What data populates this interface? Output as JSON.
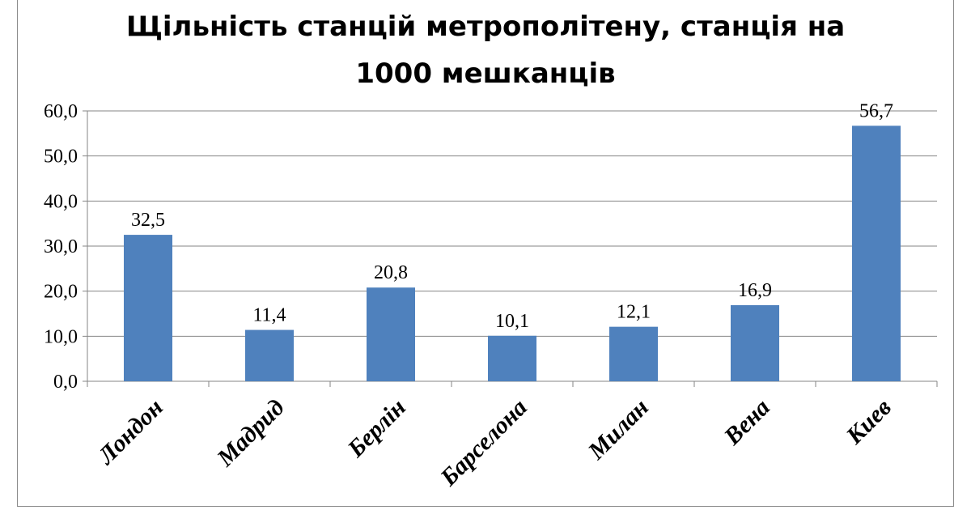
{
  "chart_data": {
    "type": "bar",
    "title_line1": "Щільність станцій метрополітену, станція на",
    "title_line2": "1000 мешканців",
    "categories": [
      "Лондон",
      "Мадрид",
      "Берлін",
      "Барселона",
      "Милан",
      "Вена",
      "Киев"
    ],
    "values": [
      32.5,
      11.4,
      20.8,
      10.1,
      12.1,
      16.9,
      56.7
    ],
    "value_labels": [
      "32,5",
      "11,4",
      "20,8",
      "10,1",
      "12,1",
      "16,9",
      "56,7"
    ],
    "y_ticks": [
      "0,0",
      "10,0",
      "20,0",
      "30,0",
      "40,0",
      "50,0",
      "60,0"
    ],
    "ylim": [
      0,
      60
    ],
    "grid": true,
    "legend": "none",
    "bar_color": "#4f81bd"
  }
}
